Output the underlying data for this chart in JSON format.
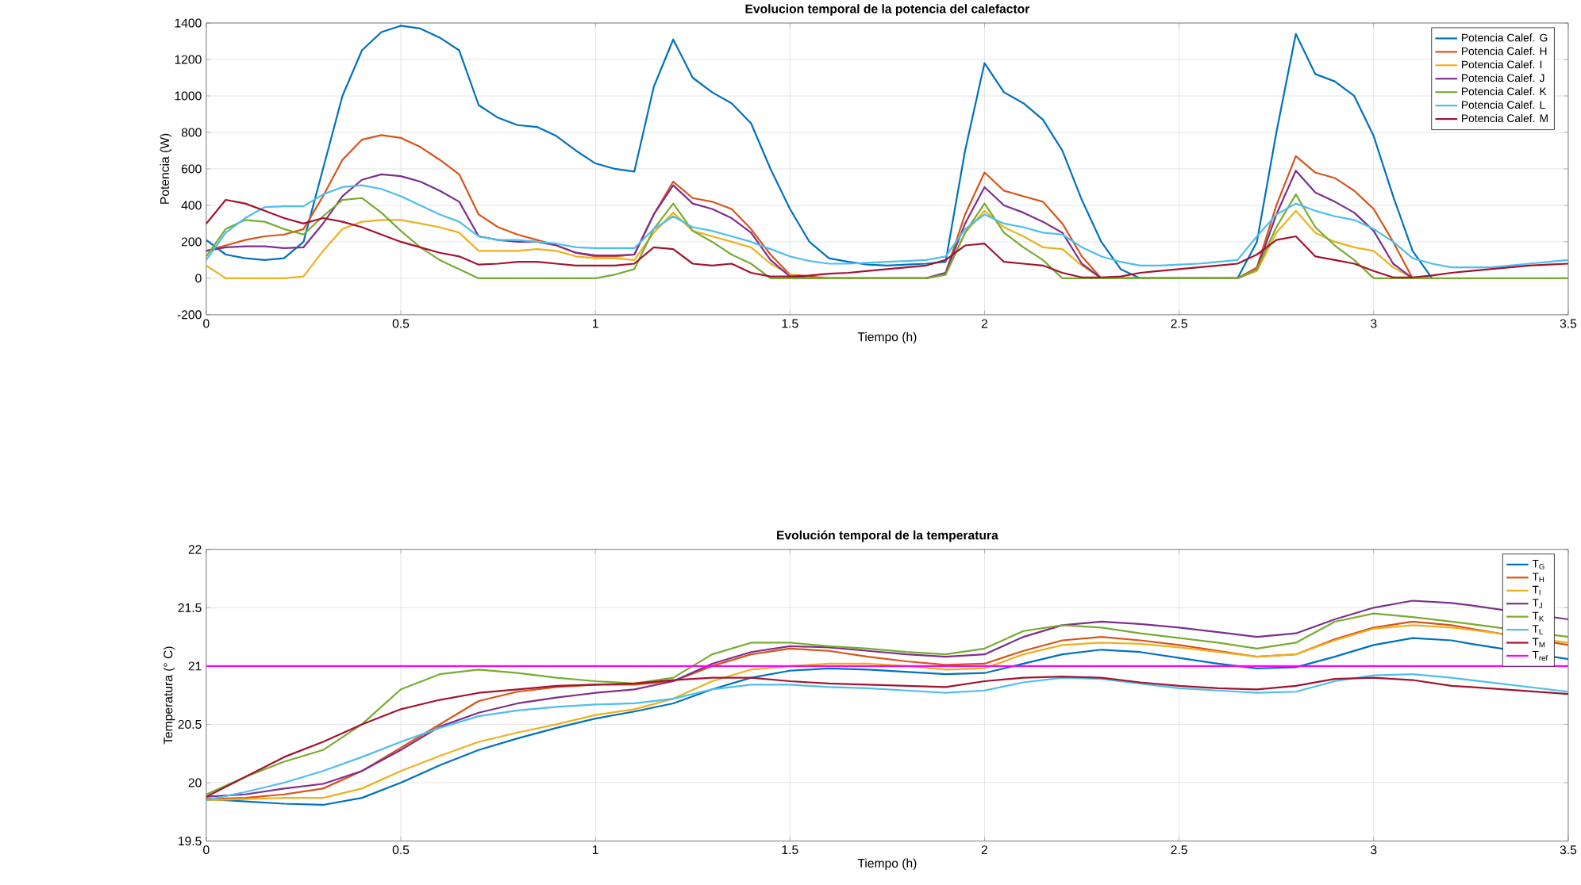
{
  "chart_data": [
    {
      "type": "line",
      "title": "Evolucion temporal de la potencia del calefactor",
      "xlabel": "Tiempo (h)",
      "ylabel": "Potencia (W)",
      "x": [
        0,
        0.05,
        0.1,
        0.15,
        0.2,
        0.25,
        0.3,
        0.35,
        0.4,
        0.45,
        0.5,
        0.55,
        0.6,
        0.65,
        0.7,
        0.75,
        0.8,
        0.85,
        0.9,
        0.95,
        1,
        1.05,
        1.1,
        1.15,
        1.2,
        1.25,
        1.3,
        1.35,
        1.4,
        1.45,
        1.5,
        1.55,
        1.6,
        1.65,
        1.7,
        1.75,
        1.8,
        1.85,
        1.9,
        1.95,
        2,
        2.05,
        2.1,
        2.15,
        2.2,
        2.25,
        2.3,
        2.35,
        2.4,
        2.45,
        2.5,
        2.55,
        2.6,
        2.65,
        2.7,
        2.75,
        2.8,
        2.85,
        2.9,
        2.95,
        3,
        3.05,
        3.1,
        3.15,
        3.2,
        3.25,
        3.3,
        3.35,
        3.4,
        3.45,
        3.5
      ],
      "series": [
        {
          "name": "Potencia Calef. G",
          "color": "#0072bd",
          "values": [
            210,
            130,
            110,
            100,
            110,
            200,
            600,
            1000,
            1250,
            1350,
            1385,
            1370,
            1320,
            1250,
            950,
            880,
            840,
            830,
            780,
            700,
            630,
            600,
            585,
            1050,
            1310,
            1100,
            1020,
            960,
            850,
            600,
            380,
            200,
            110,
            90,
            75,
            70,
            75,
            80,
            90,
            700,
            1180,
            1020,
            960,
            870,
            700,
            430,
            200,
            50,
            0,
            0,
            0,
            0,
            0,
            0,
            200,
            800,
            1340,
            1120,
            1080,
            1000,
            780,
            450,
            150,
            0,
            null,
            null,
            null,
            null,
            null,
            null,
            null
          ]
        },
        {
          "name": "Potencia Calef. H",
          "color": "#d95319",
          "values": [
            150,
            180,
            210,
            230,
            240,
            270,
            450,
            650,
            760,
            785,
            770,
            720,
            650,
            570,
            350,
            280,
            240,
            210,
            180,
            140,
            120,
            120,
            130,
            350,
            530,
            440,
            420,
            380,
            270,
            130,
            20,
            10,
            0,
            0,
            0,
            0,
            0,
            0,
            30,
            350,
            580,
            480,
            450,
            420,
            300,
            120,
            0,
            0,
            0,
            0,
            0,
            0,
            0,
            0,
            60,
            400,
            670,
            580,
            550,
            480,
            380,
            200,
            0,
            0,
            null,
            null,
            null,
            null,
            null,
            null,
            null
          ]
        },
        {
          "name": "Potencia Calef. I",
          "color": "#edb120",
          "values": [
            70,
            0,
            0,
            0,
            0,
            10,
            150,
            270,
            310,
            320,
            320,
            300,
            280,
            250,
            150,
            150,
            150,
            160,
            150,
            120,
            110,
            110,
            100,
            250,
            360,
            260,
            230,
            200,
            170,
            80,
            20,
            0,
            0,
            0,
            0,
            0,
            0,
            0,
            20,
            250,
            370,
            280,
            230,
            170,
            160,
            70,
            0,
            0,
            0,
            0,
            0,
            0,
            0,
            0,
            40,
            250,
            370,
            250,
            200,
            170,
            150,
            60,
            0,
            0,
            null,
            null,
            null,
            null,
            null,
            null,
            null
          ]
        },
        {
          "name": "Potencia Calef. J",
          "color": "#7e2f8e",
          "values": [
            150,
            170,
            175,
            175,
            165,
            170,
            300,
            450,
            540,
            570,
            560,
            530,
            480,
            420,
            230,
            210,
            200,
            200,
            180,
            140,
            125,
            125,
            130,
            350,
            510,
            410,
            380,
            330,
            250,
            100,
            10,
            0,
            0,
            0,
            0,
            0,
            0,
            0,
            30,
            300,
            500,
            400,
            360,
            310,
            250,
            80,
            0,
            0,
            0,
            0,
            0,
            0,
            0,
            0,
            50,
            350,
            590,
            470,
            420,
            360,
            260,
            80,
            0,
            0,
            null,
            null,
            null,
            null,
            null,
            null,
            null
          ]
        },
        {
          "name": "Potencia Calef. K",
          "color": "#77ac30",
          "values": [
            120,
            270,
            320,
            310,
            270,
            240,
            340,
            430,
            440,
            360,
            260,
            170,
            100,
            50,
            0,
            0,
            0,
            0,
            0,
            0,
            0,
            20,
            50,
            270,
            410,
            260,
            200,
            130,
            80,
            0,
            0,
            0,
            0,
            0,
            0,
            0,
            0,
            0,
            20,
            250,
            410,
            250,
            170,
            100,
            0,
            0,
            0,
            0,
            0,
            0,
            0,
            0,
            0,
            0,
            50,
            280,
            460,
            280,
            180,
            100,
            0,
            0,
            0,
            0,
            0,
            0,
            0,
            0,
            0,
            0,
            0
          ]
        },
        {
          "name": "Potencia Calef. L",
          "color": "#4dbeee",
          "values": [
            100,
            250,
            330,
            390,
            395,
            395,
            460,
            500,
            510,
            490,
            450,
            400,
            350,
            310,
            230,
            210,
            210,
            200,
            190,
            170,
            165,
            165,
            165,
            270,
            340,
            280,
            260,
            230,
            200,
            160,
            120,
            95,
            80,
            80,
            85,
            90,
            95,
            100,
            120,
            270,
            350,
            300,
            280,
            250,
            240,
            170,
            120,
            90,
            70,
            70,
            75,
            80,
            90,
            100,
            230,
            350,
            410,
            370,
            340,
            320,
            270,
            200,
            110,
            80,
            60,
            60,
            60,
            70,
            80,
            90,
            100
          ]
        },
        {
          "name": "Potencia Calef. M",
          "color": "#a2142f",
          "values": [
            300,
            430,
            410,
            370,
            330,
            300,
            330,
            310,
            280,
            240,
            200,
            170,
            140,
            120,
            75,
            80,
            90,
            90,
            80,
            70,
            70,
            70,
            80,
            170,
            160,
            80,
            70,
            80,
            30,
            10,
            10,
            15,
            25,
            30,
            40,
            50,
            60,
            70,
            100,
            180,
            190,
            90,
            80,
            70,
            30,
            5,
            5,
            10,
            30,
            40,
            50,
            60,
            70,
            80,
            130,
            210,
            230,
            120,
            100,
            80,
            40,
            5,
            5,
            15,
            30,
            40,
            50,
            60,
            70,
            75,
            80
          ]
        }
      ],
      "xlim": [
        0,
        3.5
      ],
      "ylim": [
        -200,
        1400
      ],
      "xticks": [
        0,
        0.5,
        1,
        1.5,
        2,
        2.5,
        3,
        3.5
      ],
      "yticks": [
        -200,
        0,
        200,
        400,
        600,
        800,
        1000,
        1200,
        1400
      ],
      "grid": true,
      "legend": "top right"
    },
    {
      "type": "line",
      "title": "Evolución temporal de la temperatura",
      "xlabel": "Tiempo (h)",
      "ylabel": "Temperatura (° C)",
      "x": [
        0,
        0.1,
        0.2,
        0.3,
        0.4,
        0.5,
        0.6,
        0.7,
        0.8,
        0.9,
        1,
        1.1,
        1.2,
        1.3,
        1.4,
        1.5,
        1.6,
        1.7,
        1.8,
        1.9,
        2,
        2.1,
        2.2,
        2.3,
        2.4,
        2.5,
        2.6,
        2.7,
        2.8,
        2.9,
        3,
        3.1,
        3.2,
        3.25,
        3.5
      ],
      "series": [
        {
          "name": "T$_{G}$",
          "color": "#0072bd",
          "values": [
            19.86,
            19.84,
            19.82,
            19.81,
            19.87,
            20.0,
            20.15,
            20.28,
            20.38,
            20.47,
            20.55,
            20.61,
            20.68,
            20.8,
            20.9,
            20.96,
            20.98,
            20.97,
            20.95,
            20.93,
            20.94,
            21.02,
            21.1,
            21.14,
            21.12,
            21.07,
            21.02,
            20.98,
            20.99,
            21.08,
            21.18,
            21.24,
            21.22,
            21.19,
            21.06
          ]
        },
        {
          "name": "T$_{H}$",
          "color": "#d95319",
          "values": [
            19.86,
            19.87,
            19.9,
            19.95,
            20.1,
            20.3,
            20.5,
            20.7,
            20.78,
            20.82,
            20.84,
            20.84,
            20.87,
            21.0,
            21.1,
            21.15,
            21.13,
            21.08,
            21.04,
            21.01,
            21.02,
            21.13,
            21.22,
            21.25,
            21.22,
            21.18,
            21.13,
            21.08,
            21.1,
            21.23,
            21.33,
            21.38,
            21.35,
            21.32,
            21.18
          ]
        },
        {
          "name": "T$_{I}$",
          "color": "#edb120",
          "values": [
            19.85,
            19.86,
            19.87,
            19.87,
            19.95,
            20.1,
            20.23,
            20.35,
            20.43,
            20.5,
            20.58,
            20.63,
            20.72,
            20.87,
            20.97,
            21.0,
            21.02,
            21.02,
            21.0,
            20.97,
            20.98,
            21.1,
            21.18,
            21.2,
            21.19,
            21.16,
            21.12,
            21.08,
            21.1,
            21.22,
            21.32,
            21.35,
            21.33,
            21.31,
            21.2
          ]
        },
        {
          "name": "T$_{J}$",
          "color": "#7e2f8e",
          "values": [
            19.88,
            19.9,
            19.95,
            19.99,
            20.1,
            20.28,
            20.48,
            20.6,
            20.68,
            20.73,
            20.77,
            20.8,
            20.87,
            21.02,
            21.12,
            21.17,
            21.16,
            21.13,
            21.1,
            21.08,
            21.1,
            21.25,
            21.35,
            21.38,
            21.36,
            21.33,
            21.29,
            21.25,
            21.28,
            21.4,
            21.5,
            21.56,
            21.54,
            21.52,
            21.4
          ]
        },
        {
          "name": "T$_{K}$",
          "color": "#77ac30",
          "values": [
            19.9,
            20.05,
            20.18,
            20.28,
            20.5,
            20.8,
            20.93,
            20.97,
            20.94,
            20.9,
            20.87,
            20.85,
            20.9,
            21.1,
            21.2,
            21.2,
            21.17,
            21.15,
            21.12,
            21.1,
            21.15,
            21.3,
            21.35,
            21.33,
            21.28,
            21.24,
            21.2,
            21.15,
            21.2,
            21.38,
            21.45,
            21.42,
            21.38,
            21.36,
            21.25
          ]
        },
        {
          "name": "T$_{L}$",
          "color": "#4dbeee",
          "values": [
            19.85,
            19.92,
            20.0,
            20.1,
            20.22,
            20.35,
            20.47,
            20.57,
            20.62,
            20.65,
            20.67,
            20.68,
            20.72,
            20.8,
            20.84,
            20.84,
            20.82,
            20.81,
            20.79,
            20.77,
            20.79,
            20.86,
            20.9,
            20.89,
            20.85,
            20.81,
            20.79,
            20.77,
            20.78,
            20.87,
            20.92,
            20.93,
            20.9,
            20.88,
            20.78
          ]
        },
        {
          "name": "T$_{M}$",
          "color": "#a2142f",
          "values": [
            19.88,
            20.05,
            20.22,
            20.35,
            20.5,
            20.63,
            20.71,
            20.77,
            20.8,
            20.83,
            20.84,
            20.85,
            20.88,
            20.9,
            20.9,
            20.87,
            20.85,
            20.84,
            20.83,
            20.82,
            20.87,
            20.9,
            20.91,
            20.9,
            20.86,
            20.83,
            20.81,
            20.8,
            20.83,
            20.89,
            20.9,
            20.88,
            20.83,
            20.82,
            20.76
          ]
        },
        {
          "name": "T$_{ref}$",
          "color": "#ff00ff",
          "x": [
            0,
            3.5
          ],
          "values": [
            21,
            21
          ]
        }
      ],
      "xlim": [
        0,
        3.5
      ],
      "ylim": [
        19.5,
        22
      ],
      "xticks": [
        0,
        0.5,
        1,
        1.5,
        2,
        2.5,
        3,
        3.5
      ],
      "yticks": [
        19.5,
        20,
        20.5,
        21,
        21.5,
        22
      ],
      "grid": true,
      "legend": "top right"
    }
  ]
}
